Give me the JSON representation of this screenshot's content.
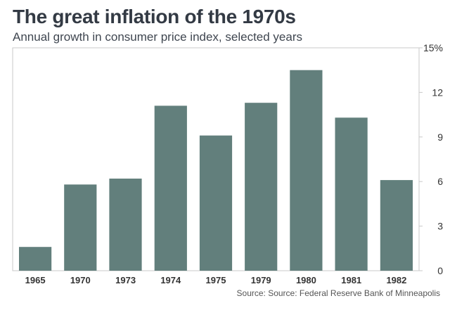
{
  "chart_data": {
    "type": "bar",
    "title": "The great inflation of the 1970s",
    "subtitle": "Annual growth in consumer price index, selected years",
    "categories": [
      "1965",
      "1970",
      "1973",
      "1974",
      "1975",
      "1979",
      "1980",
      "1981",
      "1982"
    ],
    "values": [
      1.6,
      5.8,
      6.2,
      11.1,
      9.1,
      11.3,
      13.5,
      10.3,
      6.1
    ],
    "ylim": [
      0,
      15
    ],
    "yticks": [
      0,
      3,
      6,
      9,
      12,
      15
    ],
    "ytick_labels": [
      "0",
      "3",
      "6",
      "9",
      "12",
      "15%"
    ],
    "y_axis_side": "right",
    "grid": false,
    "bar_color": "#627f7c",
    "source": "Source: Source: Federal Reserve Bank of Minneapolis"
  }
}
